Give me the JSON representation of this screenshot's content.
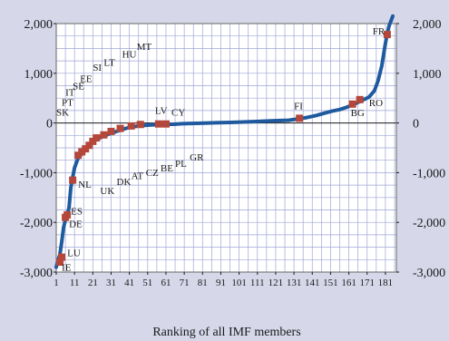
{
  "chart_data": {
    "type": "line",
    "title": "",
    "xlabel": "Ranking of all IMF members",
    "ylabel": "",
    "xlim": [
      1,
      187
    ],
    "ylim": [
      -3000,
      2000
    ],
    "y_ticks": [
      2000,
      1000,
      0,
      -1000,
      -2000,
      -3000
    ],
    "y_tick_labels": [
      "2,000",
      "1,000",
      "0",
      "-1,000",
      "-2,000",
      "-3,000"
    ],
    "x_ticks": [
      1,
      11,
      21,
      31,
      41,
      51,
      61,
      71,
      81,
      91,
      101,
      111,
      121,
      131,
      141,
      151,
      161,
      171,
      181
    ],
    "x_tick_labels": [
      "1",
      "11",
      "21",
      "31",
      "41",
      "51",
      "61",
      "71",
      "81",
      "91",
      "101",
      "111",
      "121",
      "131",
      "141",
      "151",
      "161",
      "171",
      "181"
    ],
    "grid": true,
    "colors": {
      "line": "#1f5a9e",
      "marker": "#b5473a",
      "grid": "#9ea6d6",
      "plot_bg": "#ffffff",
      "page_bg": "#d6d8ea"
    },
    "series": [
      {
        "values": [
          [
            1,
            -2900
          ],
          [
            2,
            -2760
          ],
          [
            3,
            -2650
          ],
          [
            4,
            -2400
          ],
          [
            5,
            -2100
          ],
          [
            6,
            -1950
          ],
          [
            7,
            -1850
          ],
          [
            8,
            -1700
          ],
          [
            9,
            -1300
          ],
          [
            10,
            -1100
          ],
          [
            11,
            -900
          ],
          [
            13,
            -700
          ],
          [
            15,
            -620
          ],
          [
            17,
            -520
          ],
          [
            20,
            -420
          ],
          [
            23,
            -330
          ],
          [
            26,
            -280
          ],
          [
            30,
            -220
          ],
          [
            34,
            -170
          ],
          [
            38,
            -120
          ],
          [
            42,
            -80
          ],
          [
            46,
            -60
          ],
          [
            50,
            -45
          ],
          [
            55,
            -35
          ],
          [
            60,
            -30
          ],
          [
            65,
            -25
          ],
          [
            70,
            -15
          ],
          [
            80,
            -5
          ],
          [
            90,
            5
          ],
          [
            100,
            15
          ],
          [
            110,
            30
          ],
          [
            120,
            45
          ],
          [
            128,
            55
          ],
          [
            133,
            80
          ],
          [
            138,
            110
          ],
          [
            143,
            150
          ],
          [
            148,
            200
          ],
          [
            152,
            240
          ],
          [
            156,
            270
          ],
          [
            160,
            320
          ],
          [
            164,
            380
          ],
          [
            168,
            450
          ],
          [
            172,
            520
          ],
          [
            175,
            650
          ],
          [
            177,
            850
          ],
          [
            179,
            1150
          ],
          [
            181,
            1600
          ],
          [
            182,
            1800
          ],
          [
            183,
            1950
          ],
          [
            185,
            2150
          ]
        ],
        "markers": [
          [
            3,
            -2800
          ],
          [
            4,
            -2700
          ],
          [
            6,
            -1900
          ],
          [
            7,
            -1850
          ],
          [
            10,
            -1150
          ],
          [
            13,
            -650
          ],
          [
            15,
            -580
          ],
          [
            17,
            -520
          ],
          [
            19,
            -450
          ],
          [
            21,
            -370
          ],
          [
            23,
            -300
          ],
          [
            27,
            -240
          ],
          [
            31,
            -170
          ],
          [
            36,
            -110
          ],
          [
            42,
            -60
          ],
          [
            47,
            -30
          ],
          [
            57,
            -20
          ],
          [
            61,
            -20
          ],
          [
            134,
            95
          ],
          [
            163,
            380
          ],
          [
            167,
            470
          ],
          [
            182,
            1780
          ]
        ]
      }
    ],
    "labels": [
      {
        "text": "SK",
        "x": 1,
        "y": 150
      },
      {
        "text": "PT",
        "x": 4,
        "y": 350
      },
      {
        "text": "IT",
        "x": 6,
        "y": 550
      },
      {
        "text": "SE",
        "x": 10,
        "y": 680
      },
      {
        "text": "EE",
        "x": 14,
        "y": 820
      },
      {
        "text": "SI",
        "x": 21,
        "y": 1050
      },
      {
        "text": "LT",
        "x": 27,
        "y": 1150
      },
      {
        "text": "HU",
        "x": 37,
        "y": 1320
      },
      {
        "text": "MT",
        "x": 45,
        "y": 1470
      },
      {
        "text": "LV",
        "x": 55,
        "y": 180
      },
      {
        "text": "CY",
        "x": 64,
        "y": 150
      },
      {
        "text": "FI",
        "x": 131,
        "y": 280
      },
      {
        "text": "BG",
        "x": 162,
        "y": 140
      },
      {
        "text": "RO",
        "x": 172,
        "y": 340
      },
      {
        "text": "FR",
        "x": 174,
        "y": 1780
      },
      {
        "text": "IE",
        "x": 4,
        "y": -2970
      },
      {
        "text": "LU",
        "x": 7,
        "y": -2680
      },
      {
        "text": "DE",
        "x": 8,
        "y": -2100
      },
      {
        "text": "ES",
        "x": 9,
        "y": -1840
      },
      {
        "text": "NL",
        "x": 13,
        "y": -1300
      },
      {
        "text": "UK",
        "x": 25,
        "y": -1430
      },
      {
        "text": "DK",
        "x": 34,
        "y": -1250
      },
      {
        "text": "AT",
        "x": 42,
        "y": -1130
      },
      {
        "text": "CZ",
        "x": 50,
        "y": -1070
      },
      {
        "text": "BE",
        "x": 58,
        "y": -970
      },
      {
        "text": "PL",
        "x": 66,
        "y": -880
      },
      {
        "text": "GR",
        "x": 74,
        "y": -760
      }
    ]
  }
}
